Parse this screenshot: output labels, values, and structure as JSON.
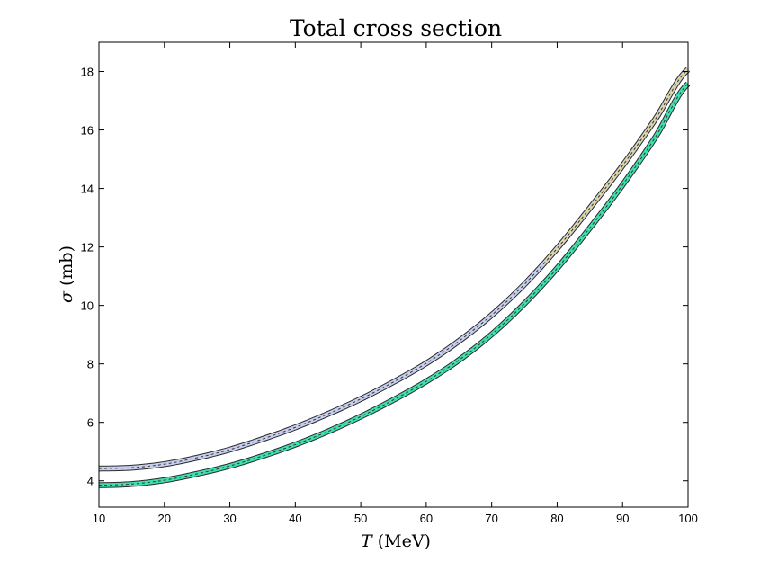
{
  "chart_data": {
    "type": "line",
    "title": "Total cross section",
    "xlabel": {
      "symbol": "T",
      "unit": "(MeV)"
    },
    "ylabel": {
      "symbol": "σ",
      "unit": "(mb)"
    },
    "xlim": [
      10,
      100
    ],
    "ylim": [
      3.1,
      19.0
    ],
    "xticks": [
      "10",
      "20",
      "30",
      "40",
      "50",
      "60",
      "70",
      "80",
      "90",
      "100"
    ],
    "yticks": [
      "4",
      "6",
      "8",
      "10",
      "12",
      "14",
      "16",
      "18"
    ],
    "grid": false,
    "x": [
      10,
      15,
      20,
      25,
      30,
      35,
      40,
      45,
      50,
      55,
      60,
      65,
      70,
      75,
      80,
      85,
      90,
      95,
      100
    ],
    "series": [
      {
        "color": "#9aaad8",
        "band_color": "#c8cfee",
        "highlight_color": "#e8d878",
        "values": [
          4.42,
          4.45,
          4.57,
          4.79,
          5.07,
          5.43,
          5.83,
          6.29,
          6.8,
          7.38,
          8.02,
          8.78,
          9.67,
          10.72,
          11.95,
          13.33,
          14.78,
          16.37,
          18.07
        ]
      },
      {
        "color": "#1ed39a",
        "band_color": "#3ee0b0",
        "values": [
          3.85,
          3.89,
          4.02,
          4.24,
          4.51,
          4.85,
          5.24,
          5.69,
          6.2,
          6.77,
          7.4,
          8.13,
          9.01,
          10.06,
          11.27,
          12.65,
          14.12,
          15.75,
          17.58
        ]
      }
    ]
  }
}
